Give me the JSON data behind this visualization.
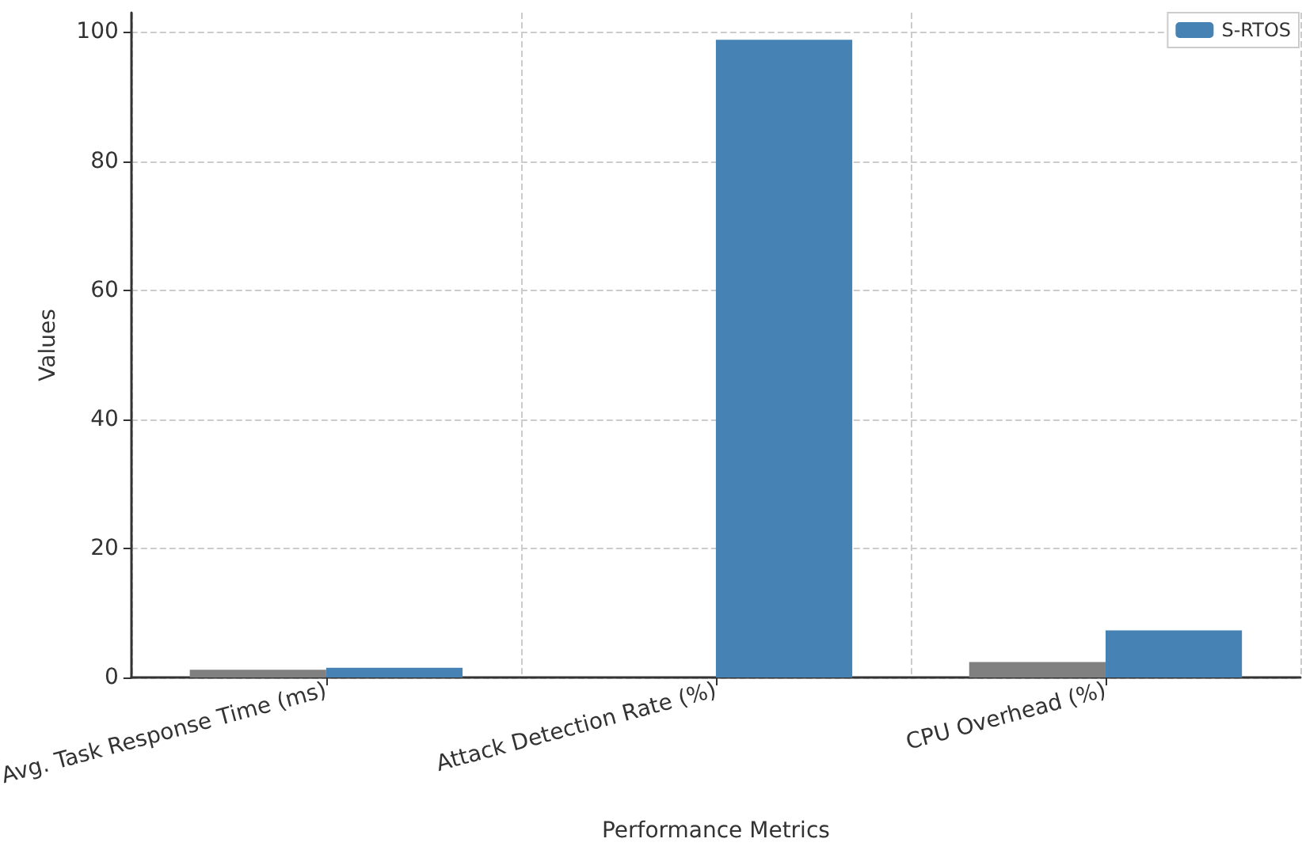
{
  "chart_data": {
    "type": "bar",
    "xlabel": "Performance Metrics",
    "ylabel": "Values",
    "categories": [
      "Avg. Task Response Time (ms)",
      "Attack Detection Rate (%)",
      "CPU Overhead (%)"
    ],
    "series": [
      {
        "color": "#808080",
        "values": [
          1.2,
          0,
          2.4
        ]
      },
      {
        "name": "S-RTOS",
        "color": "#4682b4",
        "values": [
          1.5,
          98.8,
          7.3
        ]
      }
    ],
    "ylim": [
      0,
      103
    ],
    "yticks": [
      0,
      20,
      40,
      60,
      80,
      100
    ],
    "grid": true,
    "legend": "top right"
  }
}
